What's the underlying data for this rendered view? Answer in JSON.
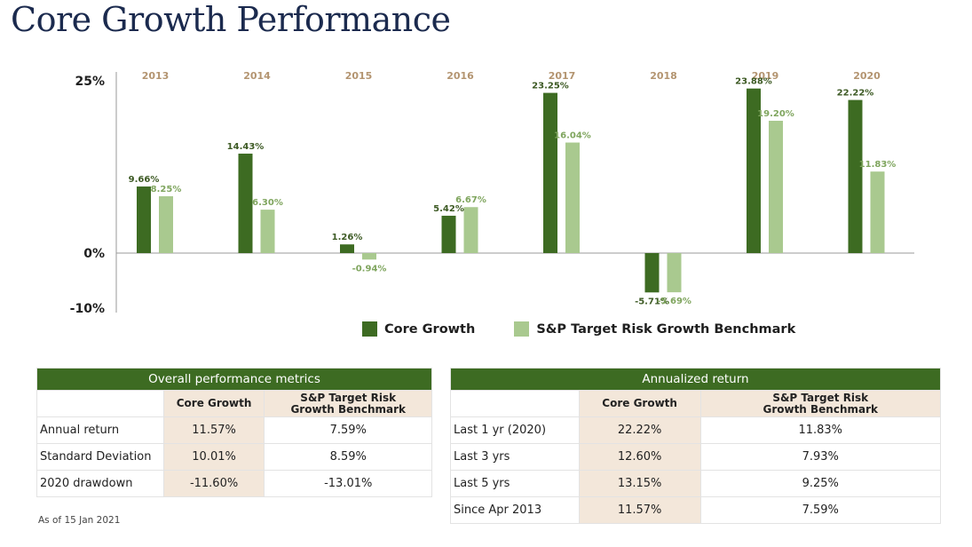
{
  "title": "Core Growth Performance",
  "colors": {
    "core": "#3d6b22",
    "bench": "#a9c98f",
    "year": "#b39470",
    "header": "#3d6b22",
    "cell": "#f3e7da"
  },
  "chart_data": {
    "type": "bar",
    "categories": [
      "2013",
      "2014",
      "2015",
      "2016",
      "2017",
      "2018",
      "2019",
      "2020"
    ],
    "series": [
      {
        "name": "Core Growth",
        "values": [
          9.66,
          14.43,
          1.26,
          5.42,
          23.25,
          -5.71,
          23.88,
          22.22
        ],
        "labels": [
          "9.66%",
          "14.43%",
          "1.26%",
          "5.42%",
          "23.25%",
          "-5.71%",
          "23.88%",
          "22.22%"
        ]
      },
      {
        "name": "S&P Target Risk Growth Benchmark",
        "values": [
          8.25,
          6.3,
          -0.94,
          6.67,
          16.04,
          -5.69,
          19.2,
          11.83
        ],
        "labels": [
          "8.25%",
          "6.30%",
          "-0.94%",
          "6.67%",
          "16.04%",
          "-5.69%",
          "19.20%",
          "11.83%"
        ]
      }
    ],
    "y_ticks": [
      {
        "value": 25,
        "label": "25%"
      },
      {
        "value": 0,
        "label": "0%"
      },
      {
        "value": -10,
        "label": "-10%"
      }
    ],
    "ylim": [
      -10,
      25
    ],
    "legend_position": "bottom",
    "grid": false
  },
  "tables": {
    "overall": {
      "title": "Overall performance metrics",
      "columns": [
        "",
        "Core Growth",
        "S&P Target Risk\nGrowth Benchmark"
      ],
      "rows": [
        [
          "Annual return",
          "11.57%",
          "7.59%"
        ],
        [
          "Standard Deviation",
          "10.01%",
          "8.59%"
        ],
        [
          "2020 drawdown",
          "-11.60%",
          "-13.01%"
        ]
      ]
    },
    "annualized": {
      "title": "Annualized return",
      "columns": [
        "",
        "Core Growth",
        "S&P Target Risk\nGrowth Benchmark"
      ],
      "rows": [
        [
          "Last 1 yr (2020)",
          "22.22%",
          "11.83%"
        ],
        [
          "Last 3 yrs",
          "12.60%",
          "7.93%"
        ],
        [
          "Last 5 yrs",
          "13.15%",
          "9.25%"
        ],
        [
          "Since Apr 2013",
          "11.57%",
          "7.59%"
        ]
      ]
    }
  },
  "note": "As of 15 Jan 2021"
}
